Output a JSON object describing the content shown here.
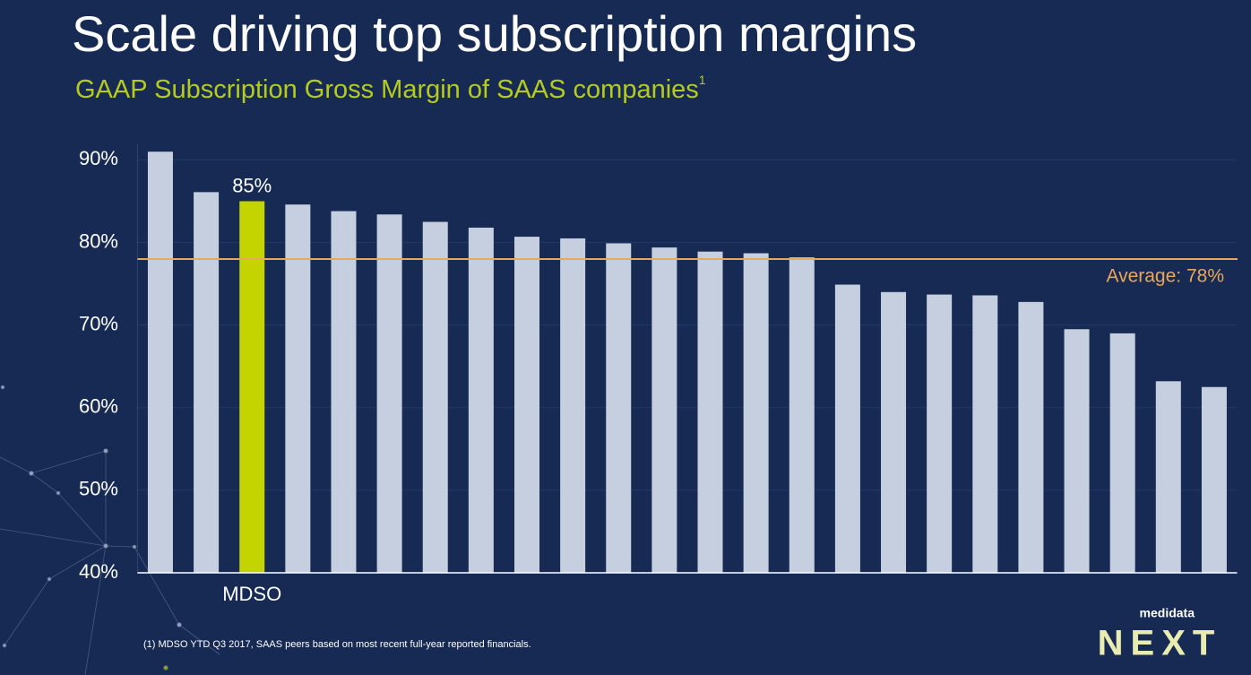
{
  "title": "Scale driving top subscription margins",
  "chart_data": {
    "type": "bar",
    "subtitle": "GAAP Subscription Gross Margin of SAAS companies",
    "subtitle_note": "1",
    "categories": [
      null,
      null,
      "MDSO",
      null,
      null,
      null,
      null,
      null,
      null,
      null,
      null,
      null,
      null,
      null,
      null,
      null,
      null,
      null,
      null,
      null,
      null,
      null,
      null,
      null
    ],
    "values": [
      91,
      86.1,
      85,
      84.6,
      83.8,
      83.4,
      82.5,
      81.8,
      80.7,
      80.5,
      79.9,
      79.4,
      78.9,
      78.7,
      78.2,
      74.9,
      74.0,
      73.7,
      73.6,
      72.8,
      69.5,
      69.0,
      63.2,
      62.5
    ],
    "value_labels": [
      null,
      null,
      "85%",
      null,
      null,
      null,
      null,
      null,
      null,
      null,
      null,
      null,
      null,
      null,
      null,
      null,
      null,
      null,
      null,
      null,
      null,
      null,
      null,
      null
    ],
    "color": "#c5cfe0",
    "highlight_color": "#c3d400",
    "highlight_index": 2,
    "ylim": [
      40,
      92
    ],
    "yticks": [
      {
        "value": 40,
        "label": "40%"
      },
      {
        "value": 50,
        "label": "50%"
      },
      {
        "value": 60,
        "label": "60%"
      },
      {
        "value": 70,
        "label": "70%"
      },
      {
        "value": 80,
        "label": "80%"
      },
      {
        "value": 90,
        "label": "90%"
      }
    ],
    "grid": true,
    "average": {
      "value": 78,
      "label": "Average: 78%",
      "color": "#e8a75a"
    }
  },
  "footnote": "(1) MDSO YTD Q3 2017, SAAS peers based on  most recent full-year reported financials.",
  "logo": {
    "company": "medidata",
    "event": "NEXT"
  }
}
